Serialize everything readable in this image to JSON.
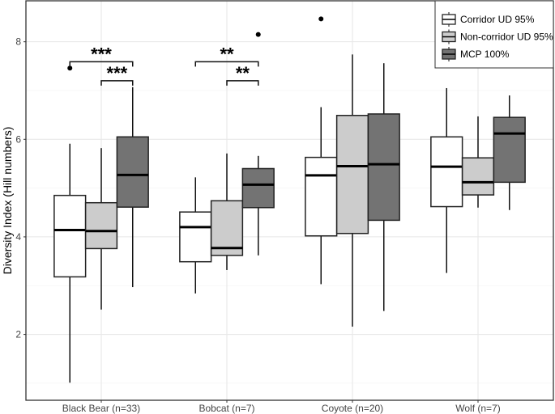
{
  "chart_data": {
    "type": "boxplot",
    "title": "",
    "xlabel": "",
    "ylabel": "Diversity Index (Hill numbers)",
    "ylim": [
      0.65,
      8.84
    ],
    "yticks": [
      2,
      4,
      6,
      8
    ],
    "grid": true,
    "legend_position": "top-right",
    "categories": [
      "Black Bear (n=33)",
      "Bobcat (n=7)",
      "Coyote (n=20)",
      "Wolf (n=7)"
    ],
    "series": [
      {
        "name": "Corridor UD 95%",
        "color": "#ffffff",
        "boxes": [
          {
            "whisker_low": 1.01,
            "q1": 3.18,
            "median": 4.14,
            "q3": 4.85,
            "whisker_high": 5.91,
            "outliers": [
              7.46
            ]
          },
          {
            "whisker_low": 2.84,
            "q1": 3.49,
            "median": 4.2,
            "q3": 4.51,
            "whisker_high": 5.22,
            "outliers": []
          },
          {
            "whisker_low": 3.03,
            "q1": 4.02,
            "median": 5.26,
            "q3": 5.63,
            "whisker_high": 6.66,
            "outliers": [
              8.47
            ]
          },
          {
            "whisker_low": 3.26,
            "q1": 4.62,
            "median": 5.44,
            "q3": 6.05,
            "whisker_high": 7.05,
            "outliers": []
          }
        ]
      },
      {
        "name": "Non-corridor UD 95%",
        "color": "#cccccc",
        "boxes": [
          {
            "whisker_low": 2.51,
            "q1": 3.76,
            "median": 4.12,
            "q3": 4.7,
            "whisker_high": 5.82,
            "outliers": []
          },
          {
            "whisker_low": 3.32,
            "q1": 3.62,
            "median": 3.77,
            "q3": 4.74,
            "whisker_high": 5.71,
            "outliers": []
          },
          {
            "whisker_low": 2.16,
            "q1": 4.07,
            "median": 5.45,
            "q3": 6.49,
            "whisker_high": 7.74,
            "outliers": []
          },
          {
            "whisker_low": 4.6,
            "q1": 4.86,
            "median": 5.12,
            "q3": 5.62,
            "whisker_high": 6.47,
            "outliers": []
          }
        ]
      },
      {
        "name": "MCP 100%",
        "color": "#737373",
        "boxes": [
          {
            "whisker_low": 2.97,
            "q1": 4.61,
            "median": 5.27,
            "q3": 6.05,
            "whisker_high": 7.07,
            "outliers": []
          },
          {
            "whisker_low": 3.62,
            "q1": 4.6,
            "median": 5.07,
            "q3": 5.4,
            "whisker_high": 5.66,
            "outliers": [
              8.15
            ]
          },
          {
            "whisker_low": 2.48,
            "q1": 4.34,
            "median": 5.49,
            "q3": 6.52,
            "whisker_high": 7.56,
            "outliers": []
          },
          {
            "whisker_low": 4.55,
            "q1": 5.12,
            "median": 6.12,
            "q3": 6.45,
            "whisker_high": 6.9,
            "outliers": []
          }
        ]
      }
    ],
    "annotations": [
      {
        "category": 0,
        "from_series": 0,
        "to_series": 2,
        "y": 7.59,
        "label": "***"
      },
      {
        "category": 0,
        "from_series": 1,
        "to_series": 2,
        "y": 7.2,
        "label": "***"
      },
      {
        "category": 1,
        "from_series": 0,
        "to_series": 2,
        "y": 7.59,
        "label": "**"
      },
      {
        "category": 1,
        "from_series": 1,
        "to_series": 2,
        "y": 7.2,
        "label": "**"
      }
    ]
  }
}
